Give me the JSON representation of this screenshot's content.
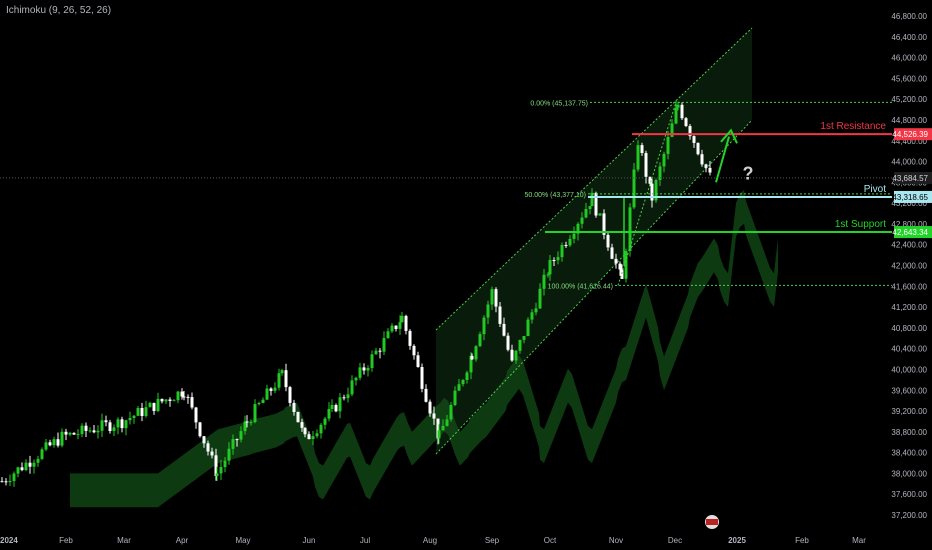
{
  "indicator": {
    "label": "Ichimoku (9, 26, 52, 26)"
  },
  "chart_data": {
    "type": "candlestick",
    "y_axis": {
      "ticks": [
        "37,200.00",
        "37,600.00",
        "38,000.00",
        "38,400.00",
        "38,800.00",
        "39,200.00",
        "39,600.00",
        "40,000.00",
        "40,400.00",
        "40,800.00",
        "41,200.00",
        "41,600.00",
        "42,000.00",
        "42,400.00",
        "42,800.00",
        "43,200.00",
        "43,600.00",
        "44,000.00",
        "44,400.00",
        "44,800.00",
        "45,200.00",
        "45,600.00",
        "46,000.00",
        "46,400.00",
        "46,800.00"
      ],
      "range": [
        37000,
        46900
      ]
    },
    "x_axis": {
      "ticks": [
        "2024",
        "Feb",
        "Mar",
        "Apr",
        "May",
        "Jun",
        "Jul",
        "Aug",
        "Sep",
        "Oct",
        "Nov",
        "Dec",
        "2025",
        "Feb",
        "Mar"
      ]
    },
    "levels": [
      {
        "name": "1st Resistance",
        "value": 44526.39,
        "tag": "44,526.39",
        "color": "#f23645"
      },
      {
        "name": "Pivot",
        "value": 43318.65,
        "tag": "43,318.65",
        "color": "#a8e6f0"
      },
      {
        "name": "1st Support",
        "value": 42643.34,
        "tag": "42,643.34",
        "color": "#22d32a"
      }
    ],
    "last_price": {
      "value": 43684.57,
      "tag": "43,684.57"
    },
    "fibonacci": [
      {
        "label": "0.00% (45,137.75)",
        "value": 45137.75
      },
      {
        "label": "50.00% (43,377.10)",
        "value": 43377.1
      },
      {
        "label": "100.00% (41,616.44)",
        "value": 41616.44
      }
    ],
    "annotations": {
      "question_mark": "?"
    },
    "colors": {
      "up": "#22c922",
      "down": "#ffffff",
      "cloud": "#0f3d12",
      "resistance": "#f23645",
      "support": "#22d32a",
      "pivot": "#a8e6f0"
    },
    "monthly_path": [
      {
        "m": "2024",
        "v": 37850
      },
      {
        "m": "Feb",
        "v": 38700
      },
      {
        "m": "Mar",
        "v": 39000
      },
      {
        "m": "Apr",
        "v": 39600
      },
      {
        "m": "Apr",
        "v": 38000
      },
      {
        "m": "May",
        "v": 39000
      },
      {
        "m": "May",
        "v": 39900
      },
      {
        "m": "Jun",
        "v": 38650
      },
      {
        "m": "Jul",
        "v": 39200
      },
      {
        "m": "Jul",
        "v": 41000
      },
      {
        "m": "Aug",
        "v": 38700
      },
      {
        "m": "Aug",
        "v": 40300
      },
      {
        "m": "Sep",
        "v": 41500
      },
      {
        "m": "Sep",
        "v": 40100
      },
      {
        "m": "Oct",
        "v": 42000
      },
      {
        "m": "Oct",
        "v": 43300
      },
      {
        "m": "Oct",
        "v": 41700
      },
      {
        "m": "Nov",
        "v": 44400
      },
      {
        "m": "Nov",
        "v": 43300
      },
      {
        "m": "Dec",
        "v": 45100
      },
      {
        "m": "Dec",
        "v": 43700
      }
    ]
  }
}
